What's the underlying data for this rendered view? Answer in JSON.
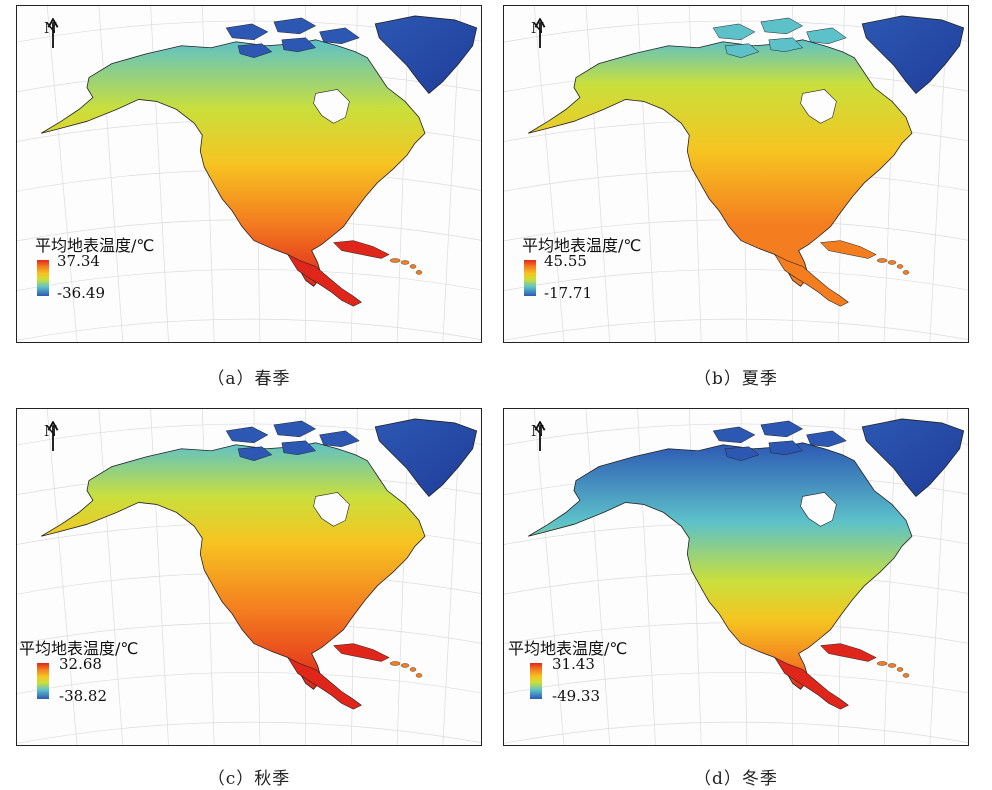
{
  "north_label": "N",
  "legend_title": "平均地表温度/℃",
  "colors": {
    "hot": "#e0261b",
    "warm": "#f47d20",
    "mild": "#f6c521",
    "cool": "#c9df3c",
    "cold": "#5cc1c9",
    "frozen": "#2c58b3",
    "greenland": "#1f3d99",
    "ocean": "#fdfdfd",
    "coast": "#222222"
  },
  "panels": [
    {
      "caption": "（a）春季",
      "max": "37.34",
      "min": "-36.49"
    },
    {
      "caption": "（b）夏季",
      "max": "45.55",
      "min": "-17.71"
    },
    {
      "caption": "（c）秋季",
      "max": "32.68",
      "min": "-38.82"
    },
    {
      "caption": "（d）冬季",
      "max": "31.43",
      "min": "-49.33"
    }
  ]
}
